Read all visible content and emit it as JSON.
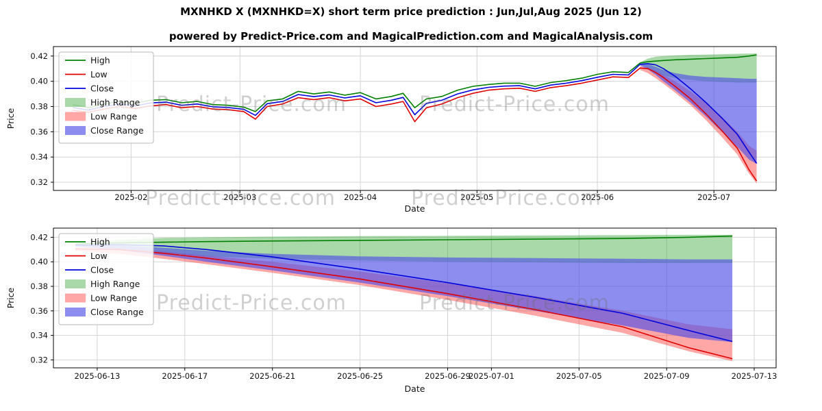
{
  "title": "MXNHKD X (MXNHKD=X) short term price prediction : Jun,Jul,Aug 2025 (Jun 12)",
  "subtitle": "powered by Predict-Price.com and MagicalPrediction.com and MagicalAnalysis.com",
  "watermark": "Predict-Price.com",
  "colors": {
    "high_line": "#008000",
    "low_line": "#e00000",
    "close_line": "#0000dd",
    "high_range_fill": "rgba(40,160,40,0.4)",
    "low_range_fill": "rgba(255,60,60,0.45)",
    "close_range_fill": "rgba(80,80,230,0.65)"
  },
  "chart_data": [
    {
      "type": "line",
      "xlabel": "Date",
      "ylabel": "Price",
      "xlim": [
        "2025-01-12",
        "2025-07-17"
      ],
      "ylim": [
        0.3135,
        0.4275
      ],
      "yticks": [
        0.32,
        0.34,
        0.36,
        0.38,
        0.4,
        0.42
      ],
      "xticks": [
        {
          "date": "2025-02-01",
          "label": "2025-02"
        },
        {
          "date": "2025-03-01",
          "label": "2025-03"
        },
        {
          "date": "2025-04-01",
          "label": "2025-04"
        },
        {
          "date": "2025-05-01",
          "label": "2025-05"
        },
        {
          "date": "2025-06-01",
          "label": "2025-06"
        },
        {
          "date": "2025-07-01",
          "label": "2025-07"
        }
      ],
      "legend": [
        {
          "label": "High",
          "type": "line",
          "color": "#008000"
        },
        {
          "label": "Low",
          "type": "line",
          "color": "#e00000"
        },
        {
          "label": "Close",
          "type": "line",
          "color": "#0000dd"
        },
        {
          "label": "High Range",
          "type": "patch",
          "color": "rgba(40,160,40,0.4)"
        },
        {
          "label": "Low Range",
          "type": "patch",
          "color": "rgba(255,60,60,0.45)"
        },
        {
          "label": "Close Range",
          "type": "patch",
          "color": "rgba(80,80,230,0.65)"
        }
      ],
      "x": [
        "2025-01-17",
        "2025-01-21",
        "2025-01-25",
        "2025-01-29",
        "2025-02-02",
        "2025-02-06",
        "2025-02-10",
        "2025-02-14",
        "2025-02-18",
        "2025-02-22",
        "2025-02-26",
        "2025-03-02",
        "2025-03-05",
        "2025-03-08",
        "2025-03-12",
        "2025-03-16",
        "2025-03-20",
        "2025-03-24",
        "2025-03-28",
        "2025-04-01",
        "2025-04-05",
        "2025-04-09",
        "2025-04-12",
        "2025-04-15",
        "2025-04-18",
        "2025-04-22",
        "2025-04-26",
        "2025-04-30",
        "2025-05-04",
        "2025-05-08",
        "2025-05-12",
        "2025-05-16",
        "2025-05-20",
        "2025-05-24",
        "2025-05-28",
        "2025-06-01",
        "2025-06-05",
        "2025-06-09",
        "2025-06-12",
        "2025-06-14",
        "2025-06-16",
        "2025-06-18",
        "2025-06-21",
        "2025-06-25",
        "2025-06-29",
        "2025-07-03",
        "2025-07-07",
        "2025-07-10",
        "2025-07-12"
      ],
      "series": [
        {
          "name": "High",
          "color": "#008000",
          "y": [
            0.3815,
            0.379,
            0.382,
            0.384,
            0.3825,
            0.385,
            0.3855,
            0.383,
            0.384,
            0.3815,
            0.381,
            0.3795,
            0.376,
            0.3845,
            0.386,
            0.392,
            0.39,
            0.3915,
            0.389,
            0.391,
            0.386,
            0.388,
            0.3905,
            0.379,
            0.386,
            0.388,
            0.393,
            0.396,
            0.3975,
            0.3985,
            0.3985,
            0.396,
            0.399,
            0.4005,
            0.4025,
            0.4055,
            0.4075,
            0.407,
            0.4145,
            0.4155,
            0.416,
            0.4165,
            0.417,
            0.4175,
            0.418,
            0.4185,
            0.419,
            0.42,
            0.421
          ]
        },
        {
          "name": "Low",
          "color": "#e00000",
          "y": [
            0.377,
            0.3755,
            0.378,
            0.38,
            0.3785,
            0.3805,
            0.3815,
            0.379,
            0.38,
            0.378,
            0.3775,
            0.376,
            0.37,
            0.38,
            0.382,
            0.387,
            0.3855,
            0.387,
            0.3845,
            0.386,
            0.38,
            0.382,
            0.384,
            0.368,
            0.379,
            0.382,
            0.387,
            0.3905,
            0.393,
            0.394,
            0.3945,
            0.392,
            0.395,
            0.3965,
            0.3985,
            0.401,
            0.4035,
            0.403,
            0.4105,
            0.41,
            0.407,
            0.403,
            0.396,
            0.386,
            0.374,
            0.361,
            0.347,
            0.33,
            0.321
          ]
        },
        {
          "name": "Close",
          "color": "#0000dd",
          "y": [
            0.3792,
            0.3772,
            0.38,
            0.382,
            0.3805,
            0.3828,
            0.3835,
            0.381,
            0.382,
            0.3798,
            0.3792,
            0.3778,
            0.373,
            0.3822,
            0.384,
            0.3895,
            0.3878,
            0.3892,
            0.3868,
            0.3885,
            0.383,
            0.385,
            0.3872,
            0.3735,
            0.3825,
            0.385,
            0.39,
            0.3932,
            0.3952,
            0.3962,
            0.3965,
            0.394,
            0.397,
            0.3985,
            0.4005,
            0.4032,
            0.4055,
            0.405,
            0.4135,
            0.414,
            0.413,
            0.41,
            0.404,
            0.394,
            0.383,
            0.371,
            0.358,
            0.344,
            0.335
          ]
        }
      ],
      "bands": [
        {
          "name": "High Range",
          "color": "rgba(40,160,40,0.4)",
          "x": [
            "2025-06-12",
            "2025-06-14",
            "2025-06-16",
            "2025-06-18",
            "2025-06-21",
            "2025-06-25",
            "2025-06-29",
            "2025-07-03",
            "2025-07-07",
            "2025-07-10",
            "2025-07-12"
          ],
          "upper": [
            0.415,
            0.418,
            0.4195,
            0.42,
            0.4205,
            0.421,
            0.4212,
            0.4215,
            0.4218,
            0.422,
            0.422
          ],
          "lower": [
            0.413,
            0.4105,
            0.407,
            0.4045,
            0.4025,
            0.401,
            0.4,
            0.3995,
            0.399,
            0.399,
            0.399
          ]
        },
        {
          "name": "Low Range",
          "color": "rgba(255,60,60,0.45)",
          "x": [
            "2025-06-12",
            "2025-06-14",
            "2025-06-16",
            "2025-06-18",
            "2025-06-21",
            "2025-06-25",
            "2025-06-29",
            "2025-07-03",
            "2025-07-07",
            "2025-07-10",
            "2025-07-12"
          ],
          "upper": [
            0.412,
            0.411,
            0.4085,
            0.405,
            0.4,
            0.392,
            0.3825,
            0.372,
            0.36,
            0.349,
            0.345
          ],
          "lower": [
            0.409,
            0.4065,
            0.4025,
            0.398,
            0.391,
            0.381,
            0.369,
            0.356,
            0.342,
            0.327,
            0.319
          ]
        },
        {
          "name": "Close Range",
          "color": "rgba(80,80,230,0.65)",
          "x": [
            "2025-06-12",
            "2025-06-14",
            "2025-06-16",
            "2025-06-18",
            "2025-06-21",
            "2025-06-25",
            "2025-06-29",
            "2025-07-03",
            "2025-07-07",
            "2025-07-10",
            "2025-07-12"
          ],
          "upper": [
            0.414,
            0.4135,
            0.4115,
            0.409,
            0.4065,
            0.4045,
            0.4035,
            0.403,
            0.4025,
            0.402,
            0.402
          ],
          "lower": [
            0.4125,
            0.4095,
            0.405,
            0.4,
            0.393,
            0.383,
            0.372,
            0.36,
            0.348,
            0.338,
            0.3345
          ]
        }
      ]
    },
    {
      "type": "line",
      "xlabel": "Date",
      "ylabel": "Price",
      "xlim": [
        "2025-06-11",
        "2025-07-14"
      ],
      "ylim": [
        0.3135,
        0.4275
      ],
      "yticks": [
        0.32,
        0.34,
        0.36,
        0.38,
        0.4,
        0.42
      ],
      "xticks": [
        "2025-06-13",
        "2025-06-17",
        "2025-06-21",
        "2025-06-25",
        "2025-06-29",
        "2025-07-01",
        "2025-07-05",
        "2025-07-09",
        "2025-07-13"
      ],
      "legend": [
        {
          "label": "High",
          "type": "line",
          "color": "#008000"
        },
        {
          "label": "Low",
          "type": "line",
          "color": "#e00000"
        },
        {
          "label": "Close",
          "type": "line",
          "color": "#0000dd"
        },
        {
          "label": "High Range",
          "type": "patch",
          "color": "rgba(40,160,40,0.4)"
        },
        {
          "label": "Low Range",
          "type": "patch",
          "color": "rgba(255,60,60,0.45)"
        },
        {
          "label": "Close Range",
          "type": "patch",
          "color": "rgba(80,80,230,0.65)"
        }
      ],
      "x": [
        "2025-06-12",
        "2025-06-14",
        "2025-06-16",
        "2025-06-18",
        "2025-06-21",
        "2025-06-25",
        "2025-06-29",
        "2025-07-03",
        "2025-07-07",
        "2025-07-10",
        "2025-07-12"
      ],
      "series": [
        {
          "name": "High",
          "color": "#008000",
          "y": [
            0.4145,
            0.4155,
            0.416,
            0.4165,
            0.417,
            0.4175,
            0.418,
            0.4185,
            0.419,
            0.42,
            0.421
          ]
        },
        {
          "name": "Low",
          "color": "#e00000",
          "y": [
            0.4105,
            0.41,
            0.407,
            0.403,
            0.396,
            0.386,
            0.374,
            0.361,
            0.347,
            0.33,
            0.321
          ]
        },
        {
          "name": "Close",
          "color": "#0000dd",
          "y": [
            0.4135,
            0.414,
            0.413,
            0.41,
            0.404,
            0.394,
            0.383,
            0.371,
            0.358,
            0.344,
            0.335
          ]
        }
      ],
      "bands": [
        {
          "name": "High Range",
          "color": "rgba(40,160,40,0.4)",
          "x": [
            "2025-06-12",
            "2025-06-14",
            "2025-06-16",
            "2025-06-18",
            "2025-06-21",
            "2025-06-25",
            "2025-06-29",
            "2025-07-03",
            "2025-07-07",
            "2025-07-10",
            "2025-07-12"
          ],
          "upper": [
            0.415,
            0.418,
            0.4195,
            0.42,
            0.4205,
            0.421,
            0.4212,
            0.4215,
            0.4218,
            0.422,
            0.422
          ],
          "lower": [
            0.413,
            0.4105,
            0.407,
            0.4045,
            0.4025,
            0.401,
            0.4,
            0.3995,
            0.399,
            0.399,
            0.399
          ]
        },
        {
          "name": "Low Range",
          "color": "rgba(255,60,60,0.45)",
          "x": [
            "2025-06-12",
            "2025-06-14",
            "2025-06-16",
            "2025-06-18",
            "2025-06-21",
            "2025-06-25",
            "2025-06-29",
            "2025-07-03",
            "2025-07-07",
            "2025-07-10",
            "2025-07-12"
          ],
          "upper": [
            0.412,
            0.411,
            0.4085,
            0.405,
            0.4,
            0.392,
            0.3825,
            0.372,
            0.36,
            0.349,
            0.345
          ],
          "lower": [
            0.409,
            0.4065,
            0.4025,
            0.398,
            0.391,
            0.381,
            0.369,
            0.356,
            0.342,
            0.327,
            0.319
          ]
        },
        {
          "name": "Close Range",
          "color": "rgba(80,80,230,0.65)",
          "x": [
            "2025-06-12",
            "2025-06-14",
            "2025-06-16",
            "2025-06-18",
            "2025-06-21",
            "2025-06-25",
            "2025-06-29",
            "2025-07-03",
            "2025-07-07",
            "2025-07-10",
            "2025-07-12"
          ],
          "upper": [
            0.414,
            0.4135,
            0.4115,
            0.409,
            0.4065,
            0.4045,
            0.4035,
            0.403,
            0.4025,
            0.402,
            0.402
          ],
          "lower": [
            0.4125,
            0.4095,
            0.405,
            0.4,
            0.393,
            0.383,
            0.372,
            0.36,
            0.348,
            0.338,
            0.3345
          ]
        }
      ]
    }
  ]
}
